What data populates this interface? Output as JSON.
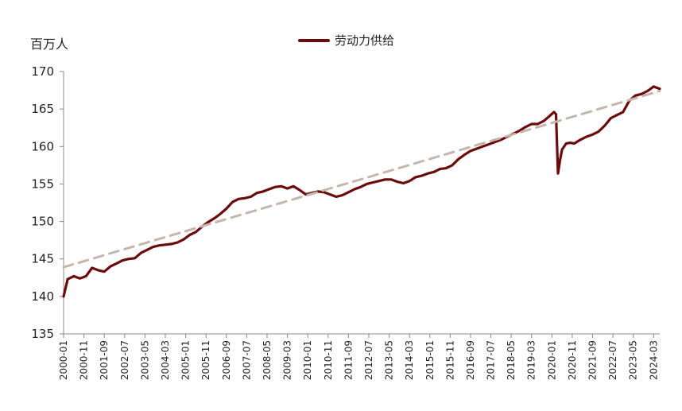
{
  "unit_label": "百万人",
  "chart_data": {
    "type": "line",
    "title": "",
    "ylabel": "百万人",
    "ylim": [
      135,
      170
    ],
    "yticks": [
      135,
      140,
      145,
      150,
      155,
      160,
      165,
      170
    ],
    "xticks": [
      "2000-01",
      "2000-11",
      "2001-09",
      "2002-07",
      "2003-05",
      "2004-03",
      "2005-01",
      "2005-11",
      "2006-09",
      "2007-07",
      "2008-05",
      "2009-03",
      "2010-01",
      "2010-11",
      "2011-09",
      "2012-07",
      "2013-05",
      "2014-03",
      "2015-01",
      "2015-11",
      "2016-09",
      "2017-07",
      "2018-05",
      "2019-03",
      "2020-01",
      "2020-11",
      "2021-09",
      "2022-07",
      "2023-05",
      "2024-03"
    ],
    "legend": {
      "position": "top-center",
      "entries": [
        "劳动力供给"
      ]
    },
    "colors": {
      "series": "#6b0b0b",
      "trend": "#c4b5ad",
      "axis": "#888888"
    },
    "series": [
      {
        "name": "劳动力供给",
        "x": [
          "2000-01",
          "2000-03",
          "2000-06",
          "2000-09",
          "2000-12",
          "2001-03",
          "2001-06",
          "2001-09",
          "2001-12",
          "2002-03",
          "2002-06",
          "2002-09",
          "2002-12",
          "2003-03",
          "2003-06",
          "2003-09",
          "2003-12",
          "2004-03",
          "2004-06",
          "2004-09",
          "2004-12",
          "2005-03",
          "2005-06",
          "2005-09",
          "2005-12",
          "2006-03",
          "2006-06",
          "2006-09",
          "2006-12",
          "2007-03",
          "2007-06",
          "2007-09",
          "2007-12",
          "2008-03",
          "2008-06",
          "2008-09",
          "2008-12",
          "2009-03",
          "2009-06",
          "2009-09",
          "2009-12",
          "2010-03",
          "2010-06",
          "2010-09",
          "2010-12",
          "2011-03",
          "2011-06",
          "2011-09",
          "2011-12",
          "2012-03",
          "2012-06",
          "2012-09",
          "2012-12",
          "2013-03",
          "2013-06",
          "2013-09",
          "2013-12",
          "2014-03",
          "2014-06",
          "2014-09",
          "2014-12",
          "2015-03",
          "2015-06",
          "2015-09",
          "2015-12",
          "2016-03",
          "2016-06",
          "2016-09",
          "2016-12",
          "2017-03",
          "2017-06",
          "2017-09",
          "2017-12",
          "2018-03",
          "2018-06",
          "2018-09",
          "2018-12",
          "2019-03",
          "2019-06",
          "2019-09",
          "2019-12",
          "2020-02",
          "2020-03",
          "2020-04",
          "2020-05",
          "2020-06",
          "2020-08",
          "2020-10",
          "2020-12",
          "2021-03",
          "2021-06",
          "2021-09",
          "2021-12",
          "2022-03",
          "2022-06",
          "2022-09",
          "2022-12",
          "2023-03",
          "2023-06",
          "2023-09",
          "2023-12",
          "2024-03",
          "2024-06"
        ],
        "values": [
          140.0,
          142.3,
          142.7,
          142.4,
          142.7,
          143.8,
          143.5,
          143.3,
          144.0,
          144.4,
          144.8,
          145.0,
          145.1,
          145.8,
          146.2,
          146.6,
          146.8,
          146.9,
          147.0,
          147.2,
          147.6,
          148.2,
          148.6,
          149.3,
          149.9,
          150.4,
          151.0,
          151.7,
          152.6,
          153.0,
          153.1,
          153.3,
          153.8,
          154.0,
          154.3,
          154.6,
          154.7,
          154.4,
          154.7,
          154.2,
          153.6,
          153.8,
          154.0,
          153.9,
          153.6,
          153.3,
          153.5,
          153.9,
          154.3,
          154.6,
          155.0,
          155.2,
          155.4,
          155.6,
          155.6,
          155.3,
          155.1,
          155.4,
          155.9,
          156.1,
          156.4,
          156.6,
          157.0,
          157.1,
          157.5,
          158.3,
          158.9,
          159.4,
          159.7,
          160.0,
          160.3,
          160.6,
          160.9,
          161.3,
          161.7,
          162.1,
          162.6,
          163.0,
          163.0,
          163.4,
          164.1,
          164.6,
          164.3,
          156.4,
          158.2,
          159.6,
          160.4,
          160.5,
          160.4,
          160.9,
          161.3,
          161.6,
          162.0,
          162.8,
          163.8,
          164.2,
          164.6,
          166.1,
          166.8,
          167.0,
          167.4,
          168.0,
          167.7
        ]
      },
      {
        "name": "",
        "style": "dashed",
        "x": [
          "2000-01",
          "2024-06"
        ],
        "values": [
          143.9,
          167.4
        ]
      }
    ]
  }
}
